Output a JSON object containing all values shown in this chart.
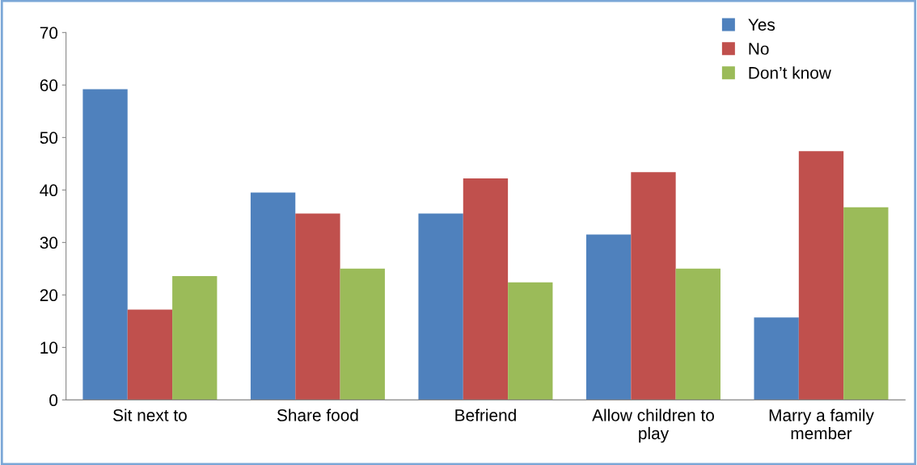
{
  "chart_data": {
    "type": "bar",
    "categories": [
      "Sit next to",
      "Share food",
      "Befriend",
      "Allow children to play",
      "Marry a family member"
    ],
    "series": [
      {
        "name": "Yes",
        "color": "#4f81bd",
        "values": [
          59.2,
          39.5,
          35.5,
          31.5,
          15.7
        ]
      },
      {
        "name": "No",
        "color": "#c0504d",
        "values": [
          17.2,
          35.5,
          42.2,
          43.4,
          47.4
        ]
      },
      {
        "name": "Don’t know",
        "color": "#9bbb59",
        "values": [
          23.6,
          25.0,
          22.4,
          25.0,
          36.7
        ]
      }
    ],
    "ylim": [
      0,
      70
    ],
    "yticks": [
      0,
      10,
      20,
      30,
      40,
      50,
      60,
      70
    ],
    "grid": false,
    "legend": "top right"
  }
}
